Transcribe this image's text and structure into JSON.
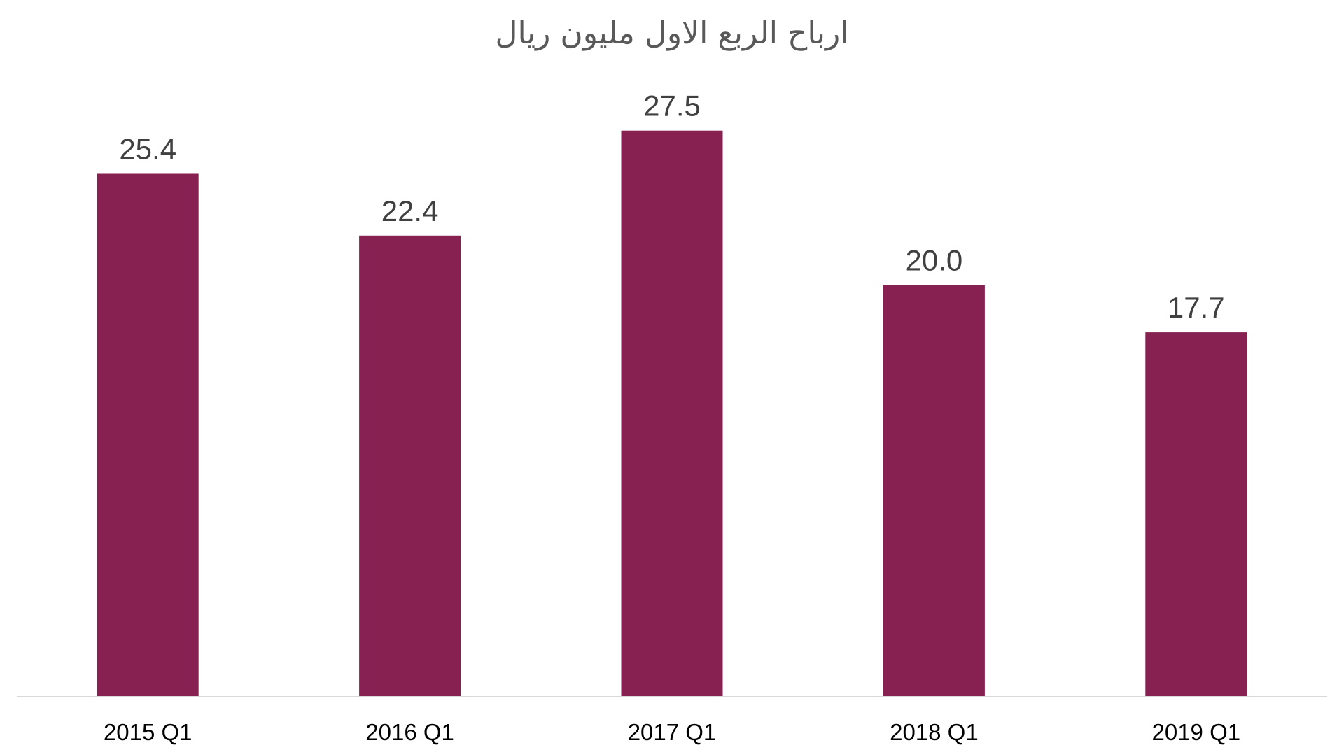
{
  "chart_data": {
    "type": "bar",
    "title": "ارباح الربع الاول مليون ريال",
    "xlabel": "",
    "ylabel": "",
    "categories": [
      "2015 Q1",
      "2016 Q1",
      "2017 Q1",
      "2018 Q1",
      "2019 Q1"
    ],
    "values": [
      25.4,
      22.4,
      27.5,
      20.0,
      17.7
    ],
    "data_labels": [
      "25.4",
      "22.4",
      "27.5",
      "20.0",
      "17.7"
    ],
    "ylim": [
      0,
      30
    ],
    "grid": false,
    "legend": "none",
    "bar_color": "#872152",
    "axis_color": "#d9d9d9"
  }
}
